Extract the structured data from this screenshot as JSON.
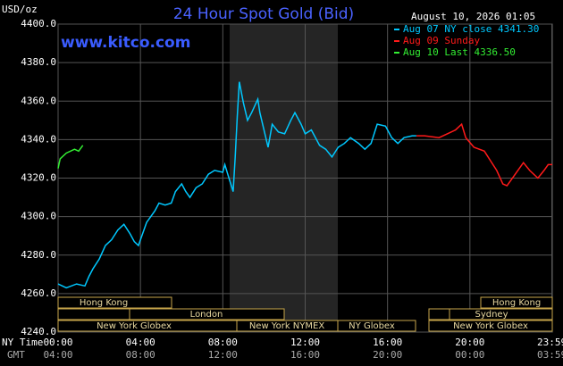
{
  "chart_data": {
    "type": "line",
    "title": "24 Hour Spot Gold (Bid)",
    "y_label": "USD/oz",
    "timestamp": "August 10, 2026 01:05",
    "watermark": "www.kitco.com",
    "x_row_labels": [
      "NY Time",
      "GMT"
    ],
    "xlim": [
      0,
      24
    ],
    "xticks": [
      {
        "value": 0,
        "label": "00:00"
      },
      {
        "value": 4,
        "label": "04:00"
      },
      {
        "value": 8,
        "label": "08:00"
      },
      {
        "value": 12,
        "label": "12:00"
      },
      {
        "value": 16,
        "label": "16:00"
      },
      {
        "value": 20,
        "label": "20:00"
      },
      {
        "value": 23.98,
        "label": "23:59"
      }
    ],
    "gmt_labels": [
      "04:00",
      "08:00",
      "12:00",
      "16:00",
      "20:00",
      "00:00",
      "03:59"
    ],
    "ylim": [
      4240,
      4400
    ],
    "yticks": [
      {
        "value": 4240,
        "label": "4240.0"
      },
      {
        "value": 4260,
        "label": "4260.0"
      },
      {
        "value": 4280,
        "label": "4280.0"
      },
      {
        "value": 4300,
        "label": "4300.0"
      },
      {
        "value": 4320,
        "label": "4320.0"
      },
      {
        "value": 4340,
        "label": "4340.0"
      },
      {
        "value": 4360,
        "label": "4360.0"
      },
      {
        "value": 4380,
        "label": "4380.0"
      },
      {
        "value": 4400,
        "label": "4400.0"
      }
    ],
    "grid": true,
    "series": [
      {
        "name": "Aug 07 NY close 4341.30",
        "color": "#00c8ff",
        "x": [
          0,
          0.4,
          0.9,
          1.3,
          1.5,
          1.7,
          2.0,
          2.3,
          2.6,
          2.9,
          3.2,
          3.5,
          3.7,
          3.9,
          4.1,
          4.3,
          4.7,
          4.9,
          5.2,
          5.5,
          5.7,
          6.0,
          6.2,
          6.4,
          6.7,
          7.0,
          7.3,
          7.6,
          8.0,
          8.1,
          8.3,
          8.5,
          8.6,
          8.7,
          8.8,
          9.0,
          9.2,
          9.4,
          9.7,
          9.8,
          10.0,
          10.2,
          10.4,
          10.7,
          11.0,
          11.3,
          11.5,
          11.8,
          12.0,
          12.3,
          12.5,
          12.7,
          13.0,
          13.3,
          13.6,
          13.9,
          14.2,
          14.6,
          14.9,
          15.2,
          15.5,
          15.9,
          16.2,
          16.5,
          16.8,
          17.2,
          17.4
        ],
        "values": [
          4265,
          4263,
          4265,
          4264,
          4269,
          4273,
          4278,
          4285,
          4288,
          4293,
          4296,
          4291,
          4287,
          4285,
          4291,
          4297,
          4303,
          4307,
          4306,
          4307,
          4313,
          4317,
          4313,
          4310,
          4315,
          4317,
          4322,
          4324,
          4323,
          4327,
          4320,
          4313,
          4331,
          4352,
          4370,
          4359,
          4350,
          4354,
          4361,
          4354,
          4345,
          4336,
          4348,
          4344,
          4343,
          4350,
          4354,
          4348,
          4343,
          4345,
          4341,
          4337,
          4335,
          4331,
          4336,
          4338,
          4341,
          4338,
          4335,
          4338,
          4348,
          4347,
          4341,
          4338,
          4341,
          4342,
          4342
        ]
      },
      {
        "name": "Aug 09 Sunday",
        "color": "#ff1a1a",
        "x": [
          17.4,
          17.8,
          18.5,
          18.9,
          19.3,
          19.6,
          19.8,
          20.2,
          20.7,
          21.0,
          21.3,
          21.6,
          21.8,
          22.2,
          22.6,
          22.9,
          23.3,
          23.6,
          23.8,
          24.0
        ],
        "values": [
          4342,
          4342,
          4341,
          4343,
          4345,
          4348,
          4341,
          4336,
          4334,
          4329,
          4324,
          4317,
          4316,
          4322,
          4328,
          4324,
          4320,
          4324,
          4327,
          4327
        ]
      },
      {
        "name": "Aug 10 Last 4336.50",
        "color": "#33ee33",
        "x": [
          0,
          0.1,
          0.4,
          0.8,
          1.0,
          1.2
        ],
        "values": [
          4325,
          4330,
          4333,
          4335,
          4334,
          4337
        ]
      }
    ],
    "sessions": [
      "Hong Kong",
      "London",
      "New York Globex",
      "New York NYMEX",
      "NY Globex",
      "Hong Kong",
      "Sydney",
      "New York Globex"
    ]
  }
}
